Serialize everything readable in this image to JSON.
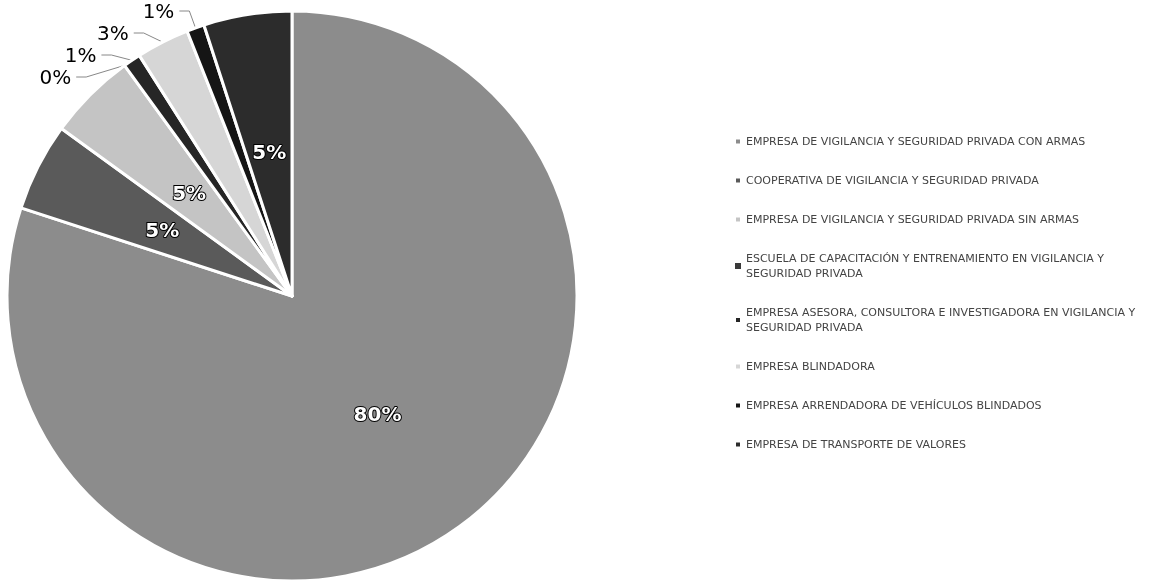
{
  "chart_data": {
    "type": "pie",
    "categories": [
      "EMPRESA DE VIGILANCIA Y SEGURIDAD PRIVADA CON ARMAS",
      "COOPERATIVA DE VIGILANCIA Y SEGURIDAD PRIVADA",
      "EMPRESA DE VIGILANCIA Y SEGURIDAD PRIVADA SIN ARMAS",
      "ESCUELA DE CAPACITACIÓN Y ENTRENAMIENTO EN VIGILANCIA Y SEGURIDAD PRIVADA",
      "EMPRESA ASESORA, CONSULTORA E INVESTIGADORA EN VIGILANCIA Y SEGURIDAD PRIVADA",
      "EMPRESA BLINDADORA",
      "EMPRESA ARRENDADORA DE VEHÍCULOS BLINDADOS",
      "EMPRESA DE TRANSPORTE DE VALORES"
    ],
    "values": [
      80,
      5,
      5,
      0,
      1,
      3,
      1,
      5
    ],
    "value_labels": [
      "80%",
      "5%",
      "5%",
      "0%",
      "1%",
      "3%",
      "1%",
      "5%"
    ],
    "colors": [
      "#8c8c8c",
      "#5a5a5a",
      "#c4c4c4",
      "#3a3a3a",
      "#262626",
      "#d6d6d6",
      "#151515",
      "#2c2c2c"
    ],
    "legend": "right"
  }
}
